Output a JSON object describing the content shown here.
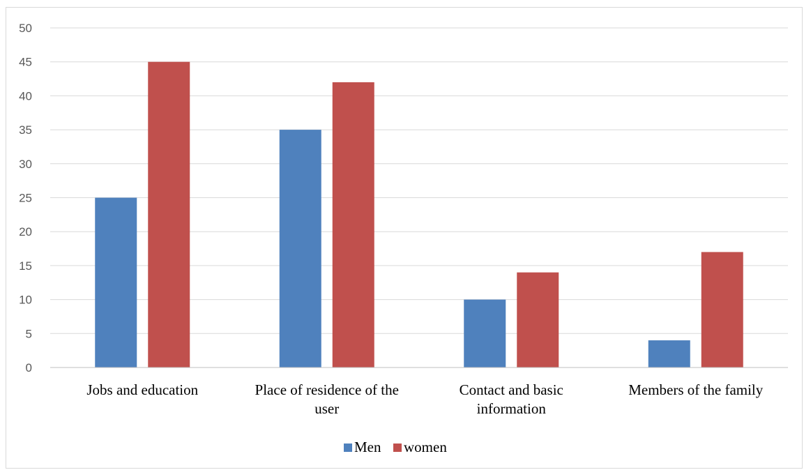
{
  "chart_data": {
    "type": "bar",
    "title": "",
    "xlabel": "",
    "ylabel": "",
    "ylim": [
      0,
      50
    ],
    "ytick_step": 5,
    "grid": true,
    "legend_position": "bottom",
    "categories": [
      [
        "Jobs and education"
      ],
      [
        "Place of residence of the",
        "user"
      ],
      [
        "Contact and basic",
        "information"
      ],
      [
        "Members of the family"
      ]
    ],
    "series": [
      {
        "name": "Men",
        "color": "#4f81bd",
        "values": [
          25,
          35,
          10,
          4
        ]
      },
      {
        "name": "women",
        "color": "#c0504d",
        "values": [
          45,
          42,
          14,
          17
        ]
      }
    ]
  }
}
